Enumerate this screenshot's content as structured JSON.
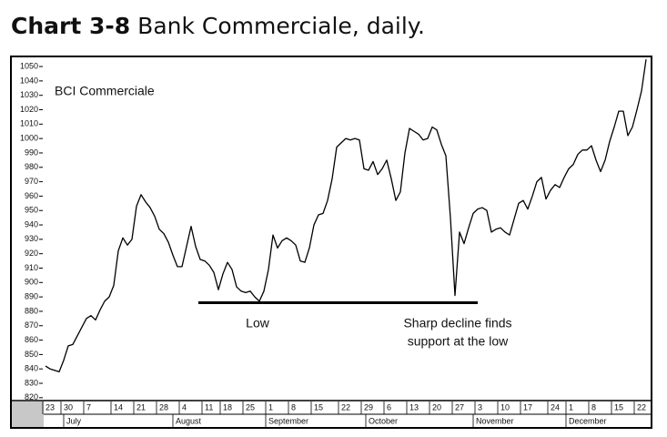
{
  "chart_data": {
    "type": "line",
    "title_label": "Chart 3-8",
    "title": "Bank Commerciale, daily.",
    "series_label": "BCI Commerciale",
    "annotations": [
      "Low",
      "Sharp decline finds",
      "support at the low"
    ],
    "support_level": 886,
    "color": "#000000",
    "grid": false,
    "ylim": [
      818,
      1057
    ],
    "yticks": [
      820,
      830,
      840,
      850,
      860,
      870,
      880,
      890,
      900,
      910,
      920,
      930,
      940,
      950,
      960,
      970,
      980,
      990,
      1000,
      1010,
      1020,
      1030,
      1040,
      1050
    ],
    "months": [
      "July",
      "August",
      "September",
      "October",
      "November",
      "December"
    ],
    "categories": [
      "23",
      null,
      null,
      null,
      "30",
      null,
      null,
      null,
      null,
      "7",
      null,
      null,
      null,
      null,
      null,
      "14",
      null,
      null,
      null,
      null,
      "21",
      null,
      null,
      null,
      null,
      "28",
      null,
      null,
      null,
      null,
      "4",
      null,
      null,
      null,
      null,
      "11",
      null,
      null,
      null,
      "18",
      null,
      null,
      null,
      null,
      "25",
      null,
      null,
      null,
      null,
      "1",
      null,
      null,
      null,
      null,
      "8",
      null,
      null,
      null,
      null,
      "15",
      null,
      null,
      null,
      null,
      null,
      "22",
      null,
      null,
      null,
      null,
      "29",
      null,
      null,
      null,
      null,
      "6",
      null,
      null,
      null,
      null,
      "13",
      null,
      null,
      null,
      null,
      "20",
      null,
      null,
      null,
      null,
      "27",
      null,
      null,
      null,
      null,
      "3",
      null,
      null,
      null,
      null,
      "10",
      null,
      null,
      null,
      null,
      "17",
      null,
      null,
      null,
      null,
      null,
      "24",
      null,
      null,
      null,
      "1",
      null,
      null,
      null,
      null,
      "8",
      null,
      null,
      null,
      null,
      "15",
      null,
      null,
      null,
      null,
      "22",
      null,
      null
    ],
    "values": [
      842,
      840,
      839,
      838,
      846,
      856,
      857,
      863,
      869,
      875,
      877,
      874,
      881,
      887,
      890,
      898,
      922,
      931,
      926,
      930,
      953,
      961,
      956,
      952,
      946,
      937,
      934,
      928,
      919,
      911,
      911,
      925,
      939,
      925,
      916,
      915,
      912,
      907,
      895,
      906,
      914,
      909,
      897,
      894,
      893,
      894,
      890,
      887,
      894,
      909,
      933,
      924,
      929,
      931,
      929,
      926,
      915,
      914,
      924,
      940,
      947,
      948,
      957,
      972,
      994,
      997,
      1000,
      999,
      1000,
      999,
      979,
      978,
      984,
      975,
      979,
      985,
      972,
      957,
      963,
      990,
      1007,
      1005,
      1003,
      999,
      1000,
      1008,
      1006,
      996,
      988,
      945,
      891,
      935,
      927,
      938,
      948,
      951,
      952,
      950,
      935,
      937,
      938,
      935,
      933,
      944,
      955,
      957,
      951,
      960,
      970,
      973,
      958,
      964,
      968,
      966,
      973,
      979,
      982,
      989,
      992,
      992,
      995,
      985,
      977,
      985,
      998,
      1008,
      1019,
      1019,
      1002,
      1008,
      1020,
      1033,
      1055
    ]
  }
}
